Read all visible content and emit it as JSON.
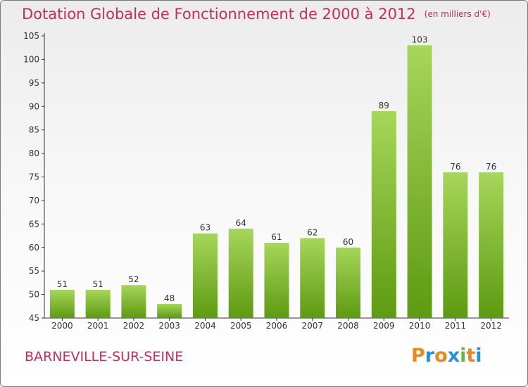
{
  "title": "Dotation Globale de Fonctionnement de 2000 à 2012",
  "unit": "(en milliers d'€)",
  "commune": "BARNEVILLE-SUR-SEINE",
  "logo": {
    "text": "Proxiti",
    "colors": [
      "#e8891a",
      "#2b8fd6",
      "#e8891a",
      "#2b8fd6",
      "#6db33f",
      "#e8891a",
      "#2b8fd6"
    ]
  },
  "colors": {
    "title": "#c0305a",
    "bar_top": "#a6d65a",
    "bar_bottom": "#5e9a12",
    "axis": "#333333"
  },
  "chart_data": {
    "type": "bar",
    "categories": [
      "2000",
      "2001",
      "2002",
      "2003",
      "2004",
      "2005",
      "2006",
      "2007",
      "2008",
      "2009",
      "2010",
      "2011",
      "2012"
    ],
    "values": [
      51,
      51,
      52,
      48,
      63,
      64,
      61,
      62,
      60,
      89,
      103,
      76,
      76
    ],
    "ylim": [
      45,
      105
    ],
    "yticks": [
      45,
      50,
      55,
      60,
      65,
      70,
      75,
      80,
      85,
      90,
      95,
      100,
      105
    ],
    "grid": false,
    "legend": "none"
  }
}
